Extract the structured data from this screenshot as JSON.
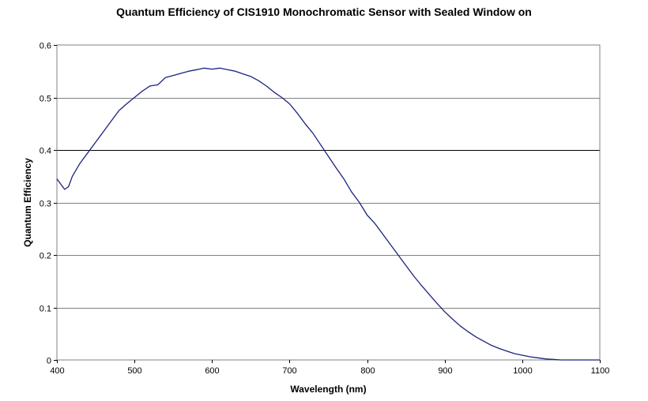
{
  "chart_data": {
    "type": "line",
    "title": "Quantum Efficiency of CIS1910 Monochromatic Sensor with Sealed Window on",
    "xlabel": "Wavelength (nm)",
    "ylabel": "Quantum Efficiency",
    "xlim": [
      400,
      1100
    ],
    "ylim": [
      0,
      0.6
    ],
    "xticks": [
      400,
      500,
      600,
      700,
      800,
      900,
      1000,
      1100
    ],
    "yticks": [
      0,
      0.1,
      0.2,
      0.3,
      0.4,
      0.5,
      0.6
    ],
    "ytick_labels": [
      "0",
      "0.1",
      "0.2",
      "0.3",
      "0.4",
      "0.5",
      "0.6"
    ],
    "grid": "horizontal",
    "legend": "none",
    "line_color": "#1a237e",
    "series": [
      {
        "x": [
          400,
          405,
          410,
          415,
          420,
          430,
          440,
          450,
          460,
          470,
          480,
          490,
          500,
          510,
          520,
          530,
          540,
          550,
          560,
          570,
          580,
          590,
          600,
          610,
          620,
          630,
          640,
          650,
          660,
          670,
          680,
          690,
          700,
          710,
          720,
          730,
          740,
          750,
          760,
          770,
          780,
          790,
          800,
          810,
          820,
          830,
          840,
          850,
          860,
          870,
          880,
          890,
          900,
          910,
          920,
          930,
          940,
          950,
          960,
          970,
          980,
          990,
          1000,
          1010,
          1020,
          1030,
          1040,
          1050,
          1060,
          1070,
          1080,
          1090,
          1100
        ],
        "y": [
          0.345,
          0.335,
          0.325,
          0.33,
          0.35,
          0.375,
          0.395,
          0.415,
          0.435,
          0.455,
          0.475,
          0.488,
          0.5,
          0.512,
          0.522,
          0.524,
          0.538,
          0.542,
          0.546,
          0.55,
          0.553,
          0.556,
          0.554,
          0.556,
          0.553,
          0.55,
          0.545,
          0.54,
          0.532,
          0.522,
          0.51,
          0.5,
          0.488,
          0.47,
          0.45,
          0.432,
          0.41,
          0.388,
          0.366,
          0.345,
          0.32,
          0.3,
          0.276,
          0.26,
          0.24,
          0.22,
          0.2,
          0.18,
          0.16,
          0.142,
          0.125,
          0.108,
          0.092,
          0.078,
          0.065,
          0.054,
          0.044,
          0.036,
          0.028,
          0.022,
          0.017,
          0.012,
          0.009,
          0.006,
          0.004,
          0.002,
          0.001,
          0,
          0,
          0,
          0,
          0,
          0
        ]
      }
    ]
  }
}
